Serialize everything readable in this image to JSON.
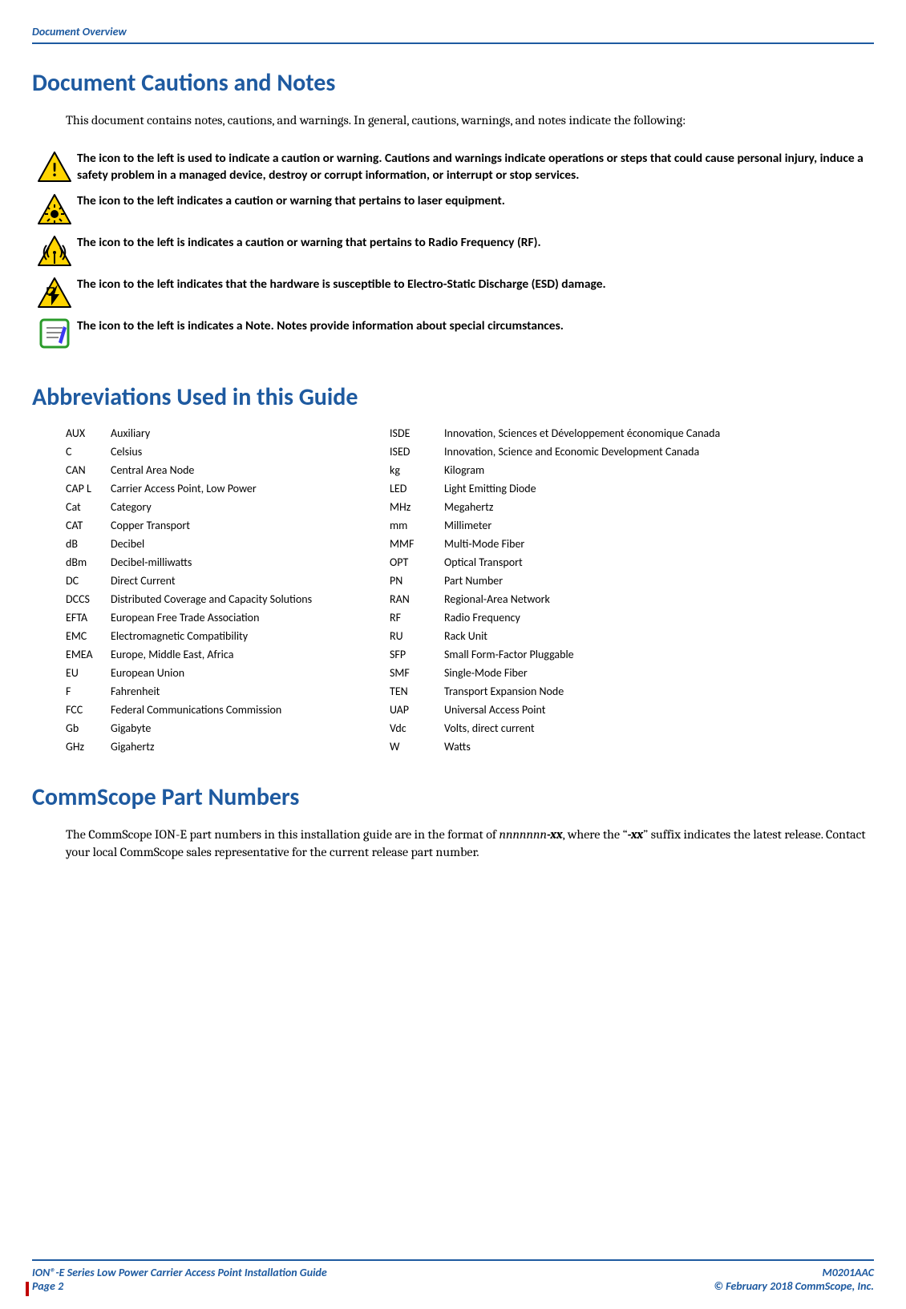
{
  "header": {
    "breadcrumb": "Document Overview"
  },
  "cautions": {
    "title": "Document Cautions and Notes",
    "intro": "This document contains notes, cautions, and warnings. In general, cautions, warnings, and notes indicate the following:",
    "rows": [
      {
        "icon": "warning-triangle",
        "text": "The icon to the left is used to indicate a caution or warning. Cautions and warnings indicate operations or steps that could cause personal injury, induce a safety problem in a managed device, destroy or corrupt information, or interrupt or stop services."
      },
      {
        "icon": "laser-triangle",
        "text": "The icon to the left indicates a caution or warning that pertains to laser equipment."
      },
      {
        "icon": "rf-triangle",
        "text": "The icon to the left is indicates a caution or warning that pertains to Radio Frequency (RF)."
      },
      {
        "icon": "esd-triangle",
        "text": "The icon to the left indicates that the hardware is susceptible to Electro-Static Discharge (ESD) damage."
      },
      {
        "icon": "note-icon",
        "text": "The icon to the left is indicates a Note. Notes provide information about special circumstances."
      }
    ],
    "icon_colors": {
      "triangle_fill": "#ffd400",
      "triangle_stroke": "#000000",
      "inner_black": "#000000",
      "note_border": "#2a9b2a",
      "note_fill": "#ffffff",
      "note_accent": "#3a3af0"
    }
  },
  "abbrev": {
    "title": "Abbreviations Used in this Guide",
    "rows": [
      {
        "l_abbr": "AUX",
        "l_def": "Auxiliary",
        "r_abbr": "ISDE",
        "r_def": "Innovation, Sciences et Développement économique Canada"
      },
      {
        "l_abbr": "C",
        "l_def": "Celsius",
        "r_abbr": "ISED",
        "r_def": "Innovation, Science and Economic Development Canada"
      },
      {
        "l_abbr": "CAN",
        "l_def": "Central Area Node",
        "r_abbr": "kg",
        "r_def": "Kilogram"
      },
      {
        "l_abbr": "CAP L",
        "l_def": "Carrier Access Point, Low Power",
        "r_abbr": "LED",
        "r_def": "Light Emitting Diode"
      },
      {
        "l_abbr": "Cat",
        "l_def": "Category",
        "r_abbr": "MHz",
        "r_def": "Megahertz"
      },
      {
        "l_abbr": "CAT",
        "l_def": "Copper Transport",
        "r_abbr": "mm",
        "r_def": "Millimeter"
      },
      {
        "l_abbr": "dB",
        "l_def": "Decibel",
        "r_abbr": "MMF",
        "r_def": "Multi-Mode Fiber"
      },
      {
        "l_abbr": "dBm",
        "l_def": "Decibel-milliwatts",
        "r_abbr": "OPT",
        "r_def": "Optical Transport"
      },
      {
        "l_abbr": "DC",
        "l_def": "Direct Current",
        "r_abbr": "PN",
        "r_def": "Part Number"
      },
      {
        "l_abbr": "DCCS",
        "l_def": "Distributed Coverage and Capacity Solutions",
        "r_abbr": "RAN",
        "r_def": "Regional-Area Network"
      },
      {
        "l_abbr": "EFTA",
        "l_def": "European Free Trade Association",
        "r_abbr": "RF",
        "r_def": "Radio Frequency"
      },
      {
        "l_abbr": "EMC",
        "l_def": "Electromagnetic Compatibility",
        "r_abbr": "RU",
        "r_def": "Rack Unit"
      },
      {
        "l_abbr": "EMEA",
        "l_def": "Europe, Middle East, Africa",
        "r_abbr": "SFP",
        "r_def": "Small Form-Factor Pluggable"
      },
      {
        "l_abbr": "EU",
        "l_def": "European Union",
        "r_abbr": "SMF",
        "r_def": "Single-Mode Fiber"
      },
      {
        "l_abbr": "F",
        "l_def": "Fahrenheit",
        "r_abbr": "TEN",
        "r_def": "Transport Expansion Node"
      },
      {
        "l_abbr": "FCC",
        "l_def": "Federal Communications Commission",
        "r_abbr": "UAP",
        "r_def": "Universal Access Point"
      },
      {
        "l_abbr": "Gb",
        "l_def": "Gigabyte",
        "r_abbr": "Vdc",
        "r_def": "Volts, direct current"
      },
      {
        "l_abbr": "GHz",
        "l_def": "Gigahertz",
        "r_abbr": "W",
        "r_def": "Watts"
      }
    ]
  },
  "part_numbers": {
    "title": "CommScope Part Numbers",
    "body_pre": "The CommScope ION-E part numbers in this installation guide are in the format of ",
    "body_i1": "nnnnnnn",
    "body_i2": "-xx",
    "body_mid": ", where the “",
    "body_i3": "-xx",
    "body_post": "” suffix indicates the latest release. Contact your local CommScope sales representative for the current release part number."
  },
  "footer": {
    "left1": "ION®-E Series Low Power Carrier Access Point Installation Guide",
    "left2": "Page 2",
    "right1": "M0201AAC",
    "right2": "© February 2018 CommScope, Inc."
  }
}
